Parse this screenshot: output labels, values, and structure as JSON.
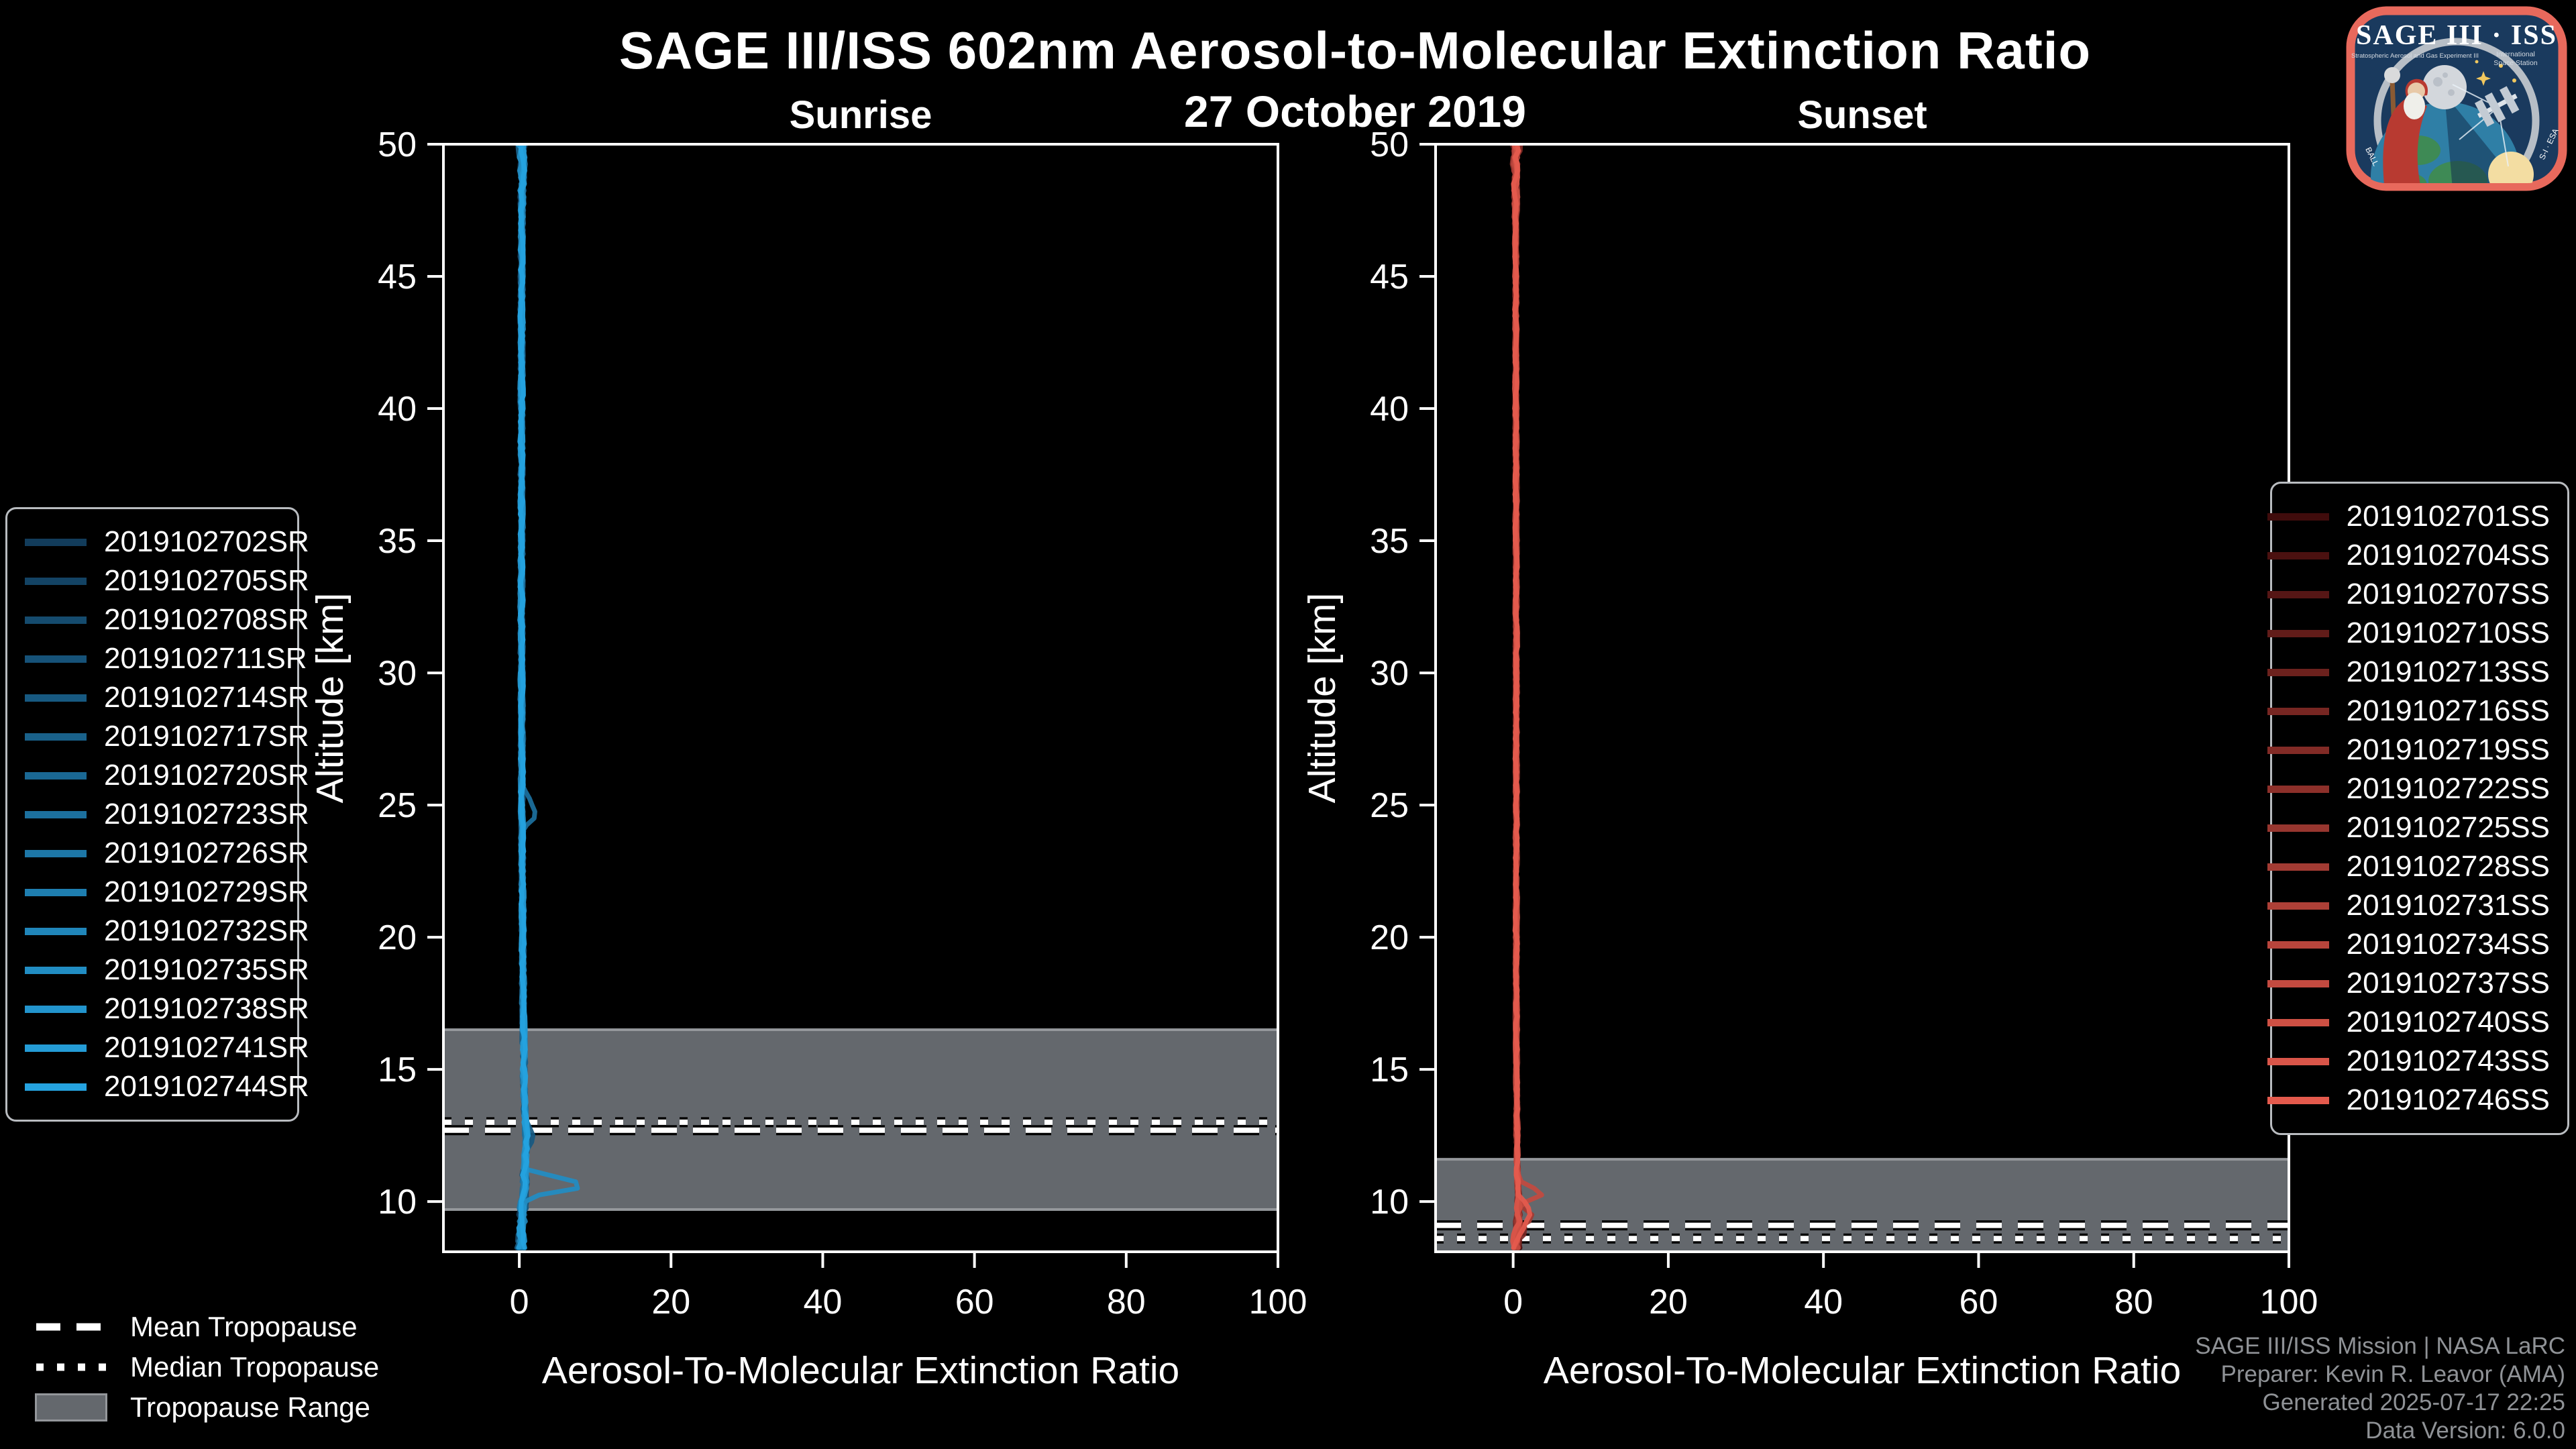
{
  "header": {
    "title": "SAGE III/ISS 602nm Aerosol-to-Molecular Extinction Ratio",
    "subtitle": "27 October 2019"
  },
  "attribution": {
    "lines": [
      "SAGE III/ISS Mission | NASA LaRC",
      "Preparer: Kevin R. Leavor (AMA)",
      "Generated 2025-07-17 22:25",
      "Data Version: 6.0.0"
    ]
  },
  "tropopause_legend": {
    "items": [
      {
        "label": "Mean Tropopause",
        "style": "dashed"
      },
      {
        "label": "Median Tropopause",
        "style": "dotted"
      },
      {
        "label": "Tropopause Range",
        "style": "band"
      }
    ]
  },
  "logo": {
    "title": "SAGE III · ISS",
    "sub_left": "Stratospheric Aerosol and Gas Experiment III",
    "sub_right1": "International",
    "sub_right2": "Space Station",
    "border_left": "BALL",
    "border_right": "S-I · ESA"
  },
  "colors": {
    "background": "#000000",
    "text": "#ffffff",
    "muted_text": "#8F9296",
    "spine": "#ffffff",
    "band_fill": "#64686D",
    "band_edge": "#94979B",
    "tropopause_line": "#ffffff",
    "tropopause_outline": "#000000",
    "sunrise_accent": "#25A3E0",
    "sunset_accent": "#E45A4D"
  },
  "chart_data": [
    {
      "type": "line",
      "title": "Sunrise",
      "xlabel": "Aerosol-To-Molecular Extinction Ratio",
      "ylabel": "Altitude [km]",
      "xlim": [
        -10,
        100
      ],
      "ylim": [
        8.1,
        50
      ],
      "xticks": [
        0,
        20,
        40,
        60,
        80,
        100
      ],
      "yticks": [
        10,
        15,
        20,
        25,
        30,
        35,
        40,
        45,
        50
      ],
      "grid": false,
      "legend_position": "outside-left",
      "tropopause": {
        "range_km": [
          9.7,
          16.5
        ],
        "mean_km": 12.7,
        "median_km": 13.0
      },
      "base_profile": [
        [
          50,
          0.4
        ],
        [
          48,
          0.35
        ],
        [
          45,
          0.3
        ],
        [
          40,
          0.3
        ],
        [
          35,
          0.3
        ],
        [
          30,
          0.3
        ],
        [
          25,
          0.35
        ],
        [
          20,
          0.45
        ],
        [
          17,
          0.55
        ],
        [
          15,
          0.6
        ],
        [
          13.5,
          0.7
        ],
        [
          12.5,
          0.9
        ],
        [
          11.5,
          0.8
        ],
        [
          10.8,
          0.7
        ],
        [
          10,
          0.5
        ],
        [
          9,
          0.3
        ],
        [
          8.2,
          0.2
        ]
      ],
      "noise": {
        "base": 0.3,
        "upper_boost": 0.35,
        "upper_above_km": 47,
        "lower_boost": 0.45,
        "lower_below_km": 13
      },
      "features": [
        {
          "series": 7,
          "knots": [
            [
              25.7,
              0.4
            ],
            [
              25.1,
              1.6
            ],
            [
              24.6,
              2.3
            ],
            [
              24.1,
              0.5
            ]
          ]
        },
        {
          "series": 11,
          "knots": [
            [
              11.2,
              0.9
            ],
            [
              10.6,
              9.6
            ],
            [
              10.2,
              1.5
            ],
            [
              9.9,
              0.4
            ]
          ]
        },
        {
          "series": 4,
          "knots": [
            [
              13.2,
              0.8
            ],
            [
              12.4,
              2.0
            ],
            [
              11.8,
              0.6
            ]
          ]
        }
      ],
      "series": [
        {
          "label": "2019102702SR",
          "color": "#123C5B"
        },
        {
          "label": "2019102705SR",
          "color": "#134364"
        },
        {
          "label": "2019102708SR",
          "color": "#154B6E"
        },
        {
          "label": "2019102711SR",
          "color": "#165278"
        },
        {
          "label": "2019102714SR",
          "color": "#175981"
        },
        {
          "label": "2019102717SR",
          "color": "#19618A"
        },
        {
          "label": "2019102720SR",
          "color": "#1A6894"
        },
        {
          "label": "2019102723SR",
          "color": "#1C709E"
        },
        {
          "label": "2019102726SR",
          "color": "#1D77A7"
        },
        {
          "label": "2019102729SR",
          "color": "#1E7EB0"
        },
        {
          "label": "2019102732SR",
          "color": "#2086BA"
        },
        {
          "label": "2019102735SR",
          "color": "#218DC3"
        },
        {
          "label": "2019102738SR",
          "color": "#2294CD"
        },
        {
          "label": "2019102741SR",
          "color": "#249CD6"
        },
        {
          "label": "2019102744SR",
          "color": "#25A3E0"
        }
      ]
    },
    {
      "type": "line",
      "title": "Sunset",
      "xlabel": "Aerosol-To-Molecular Extinction Ratio",
      "ylabel": "Altitude [km]",
      "xlim": [
        -10,
        100
      ],
      "ylim": [
        8.1,
        50
      ],
      "xticks": [
        0,
        20,
        40,
        60,
        80,
        100
      ],
      "yticks": [
        10,
        15,
        20,
        25,
        30,
        35,
        40,
        45,
        50
      ],
      "grid": false,
      "legend_position": "outside-right",
      "tropopause": {
        "range_km": [
          8.1,
          11.6
        ],
        "mean_km": 9.1,
        "median_km": 8.6
      },
      "base_profile": [
        [
          50,
          0.3
        ],
        [
          48,
          0.3
        ],
        [
          45,
          0.35
        ],
        [
          40,
          0.35
        ],
        [
          35,
          0.4
        ],
        [
          30,
          0.4
        ],
        [
          25,
          0.4
        ],
        [
          20,
          0.4
        ],
        [
          15,
          0.45
        ],
        [
          12,
          0.5
        ],
        [
          11,
          0.55
        ],
        [
          10.4,
          0.65
        ],
        [
          9.8,
          0.7
        ],
        [
          9.2,
          0.55
        ],
        [
          8.6,
          0.4
        ],
        [
          8.1,
          0.3
        ]
      ],
      "noise": {
        "base": 0.22,
        "upper_boost": 0.5,
        "upper_above_km": 47,
        "lower_boost": 0.5,
        "lower_below_km": 10.5
      },
      "features": [
        {
          "series": 12,
          "knots": [
            [
              10.8,
              0.7
            ],
            [
              10.3,
              4.1
            ],
            [
              9.9,
              1.0
            ],
            [
              9.6,
              0.5
            ]
          ]
        },
        {
          "series": 9,
          "knots": [
            [
              9.9,
              0.8
            ],
            [
              9.4,
              2.9
            ],
            [
              9.0,
              0.6
            ]
          ]
        },
        {
          "series": 15,
          "knots": [
            [
              10.1,
              1.2
            ],
            [
              9.6,
              2.2
            ],
            [
              9.1,
              1.5
            ],
            [
              8.6,
              0.5
            ]
          ]
        },
        {
          "series": 5,
          "knots": [
            [
              9.3,
              0.6
            ],
            [
              8.9,
              1.8
            ],
            [
              8.4,
              0.4
            ]
          ]
        }
      ],
      "series": [
        {
          "label": "2019102701SS",
          "color": "#400C0C"
        },
        {
          "label": "2019102704SS",
          "color": "#4B1110"
        },
        {
          "label": "2019102707SS",
          "color": "#561615"
        },
        {
          "label": "2019102710SS",
          "color": "#611C19"
        },
        {
          "label": "2019102713SS",
          "color": "#6C211D"
        },
        {
          "label": "2019102716SS",
          "color": "#772622"
        },
        {
          "label": "2019102719SS",
          "color": "#822B26"
        },
        {
          "label": "2019102722SS",
          "color": "#8D302A"
        },
        {
          "label": "2019102725SS",
          "color": "#97362F"
        },
        {
          "label": "2019102728SS",
          "color": "#A23B33"
        },
        {
          "label": "2019102731SS",
          "color": "#AD4037"
        },
        {
          "label": "2019102734SS",
          "color": "#B8453C"
        },
        {
          "label": "2019102737SS",
          "color": "#C34A40"
        },
        {
          "label": "2019102740SS",
          "color": "#CE5044"
        },
        {
          "label": "2019102743SS",
          "color": "#D95549"
        },
        {
          "label": "2019102746SS",
          "color": "#E45A4D"
        }
      ]
    }
  ]
}
